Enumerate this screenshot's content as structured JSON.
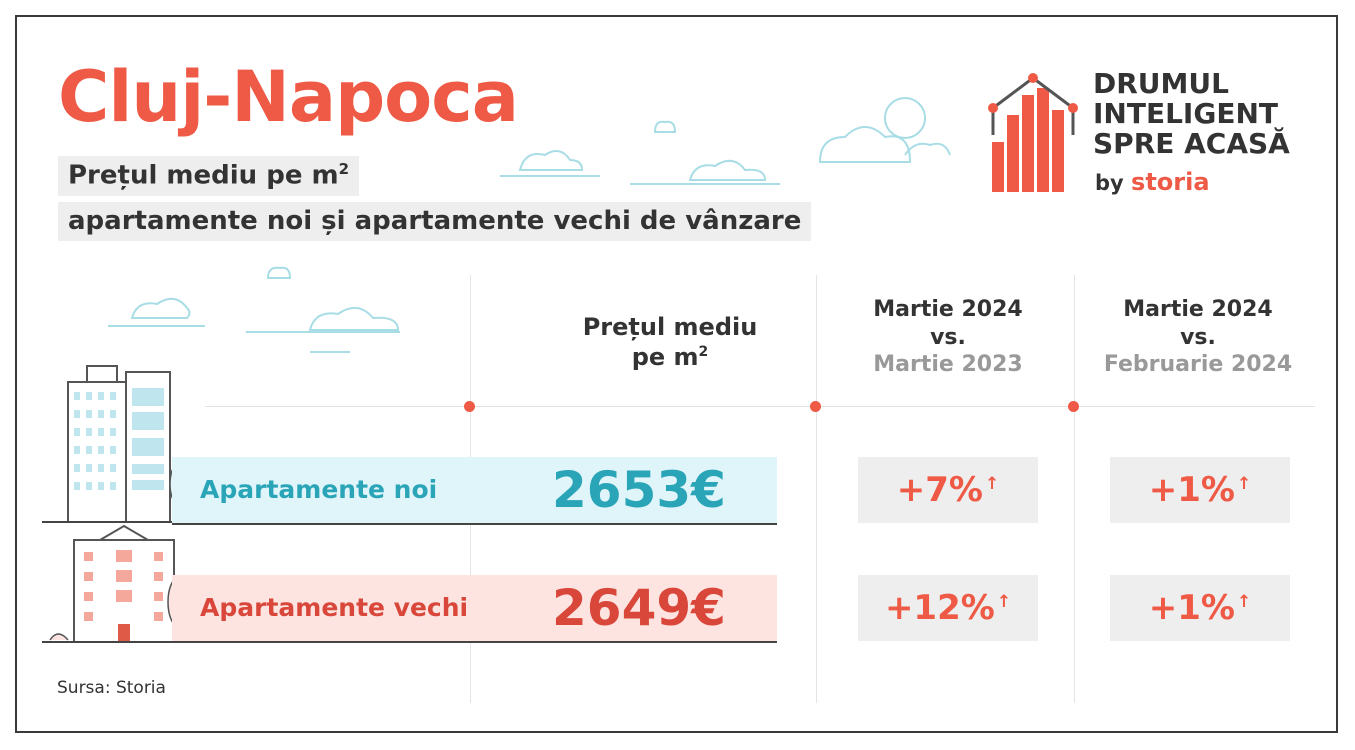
{
  "header": {
    "title": "Cluj-Napoca",
    "subtitle_line1": "Prețul mediu pe m",
    "subtitle_line1_sup": "2",
    "subtitle_line2": "apartamente noi și apartamente vechi de vânzare"
  },
  "logo": {
    "line1": "DRUMUL",
    "line2": "INTELIGENT",
    "line3": "SPRE ACASĂ",
    "by": "by",
    "brand": "storia"
  },
  "table": {
    "col_price": {
      "line1": "Prețul mediu",
      "line2": "pe m",
      "sup": "2"
    },
    "col_yoy": {
      "line1": "Martie 2024",
      "line2": "vs.",
      "line3": "Martie 2023"
    },
    "col_mom": {
      "line1": "Martie 2024",
      "line2": "vs.",
      "line3": "Februarie 2024"
    },
    "rows": [
      {
        "label": "Apartamente noi",
        "price": "2653€",
        "yoy": "+7%",
        "mom": "+1%",
        "label_color": "#2aa5b8",
        "price_color": "#2aa5b8"
      },
      {
        "label": "Apartamente vechi",
        "price": "2649€",
        "yoy": "+12%",
        "mom": "+1%",
        "label_color": "#d9463a",
        "price_color": "#d9463a"
      }
    ],
    "arrow_icon": "up-arrow-icon"
  },
  "source": "Sursa: Storia",
  "colors": {
    "accent": "#ee5a45",
    "teal": "#2aa5b8",
    "band_teal": "#dff5f9",
    "band_pink": "#fde4e0"
  }
}
